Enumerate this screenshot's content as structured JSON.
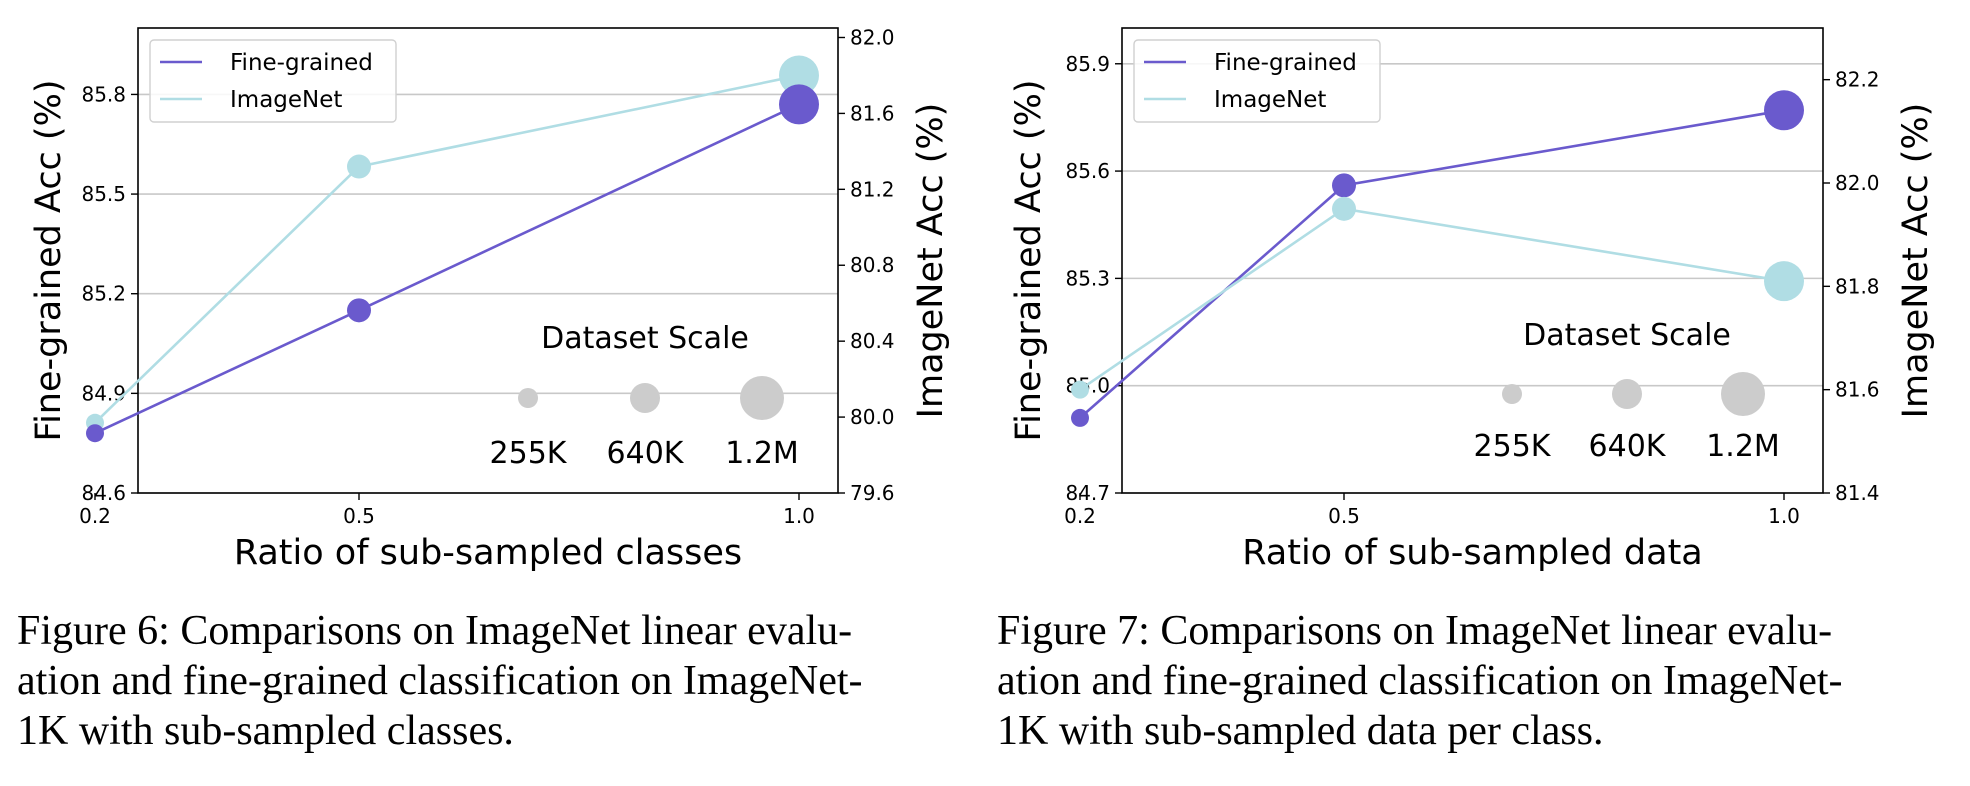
{
  "chart_data": [
    {
      "type": "line",
      "xlabel": "Ratio of sub-sampled classes",
      "ylabel_left": "Fine-grained Acc (%)",
      "ylabel_right": "ImageNet Acc (%)",
      "x": [
        0.2,
        0.5,
        1.0
      ],
      "x_ticks": [
        "0.2",
        "0.5",
        "1.0"
      ],
      "ylim_left": [
        84.6,
        86.0
      ],
      "ylim_right": [
        79.6,
        82.05
      ],
      "y_ticks_left": [
        "84.6",
        "84.9",
        "85.2",
        "85.5",
        "85.8"
      ],
      "y_ticks_right": [
        "79.6",
        "80.0",
        "80.4",
        "80.8",
        "81.2",
        "81.6",
        "82.0"
      ],
      "grid": "horizontal",
      "legend_position": "top-left",
      "series": [
        {
          "name": "Fine-grained",
          "axis": "left",
          "color": "#6a5acd",
          "values": [
            84.78,
            85.15,
            85.77
          ]
        },
        {
          "name": "ImageNet",
          "axis": "right",
          "color": "#b0dde4",
          "values": [
            79.97,
            81.32,
            81.8
          ]
        }
      ],
      "marker_sizes": [
        "small",
        "medium",
        "large"
      ],
      "scale_legend": {
        "title": "Dataset Scale",
        "labels": [
          "255K",
          "640K",
          "1.2M"
        ],
        "color": "#cccccc"
      },
      "caption": "Figure 6: Comparisons on ImageNet linear evalu-\nation and fine-grained classification on ImageNet-\n1K with sub-sampled classes."
    },
    {
      "type": "line",
      "xlabel": "Ratio of sub-sampled data",
      "ylabel_left": "Fine-grained Acc (%)",
      "ylabel_right": "ImageNet Acc (%)",
      "x": [
        0.2,
        0.5,
        1.0
      ],
      "x_ticks": [
        "0.2",
        "0.5",
        "1.0"
      ],
      "ylim_left": [
        84.7,
        86.0
      ],
      "ylim_right": [
        81.4,
        82.3
      ],
      "y_ticks_left": [
        "84.7",
        "85.0",
        "85.3",
        "85.6",
        "85.9"
      ],
      "y_ticks_right": [
        "81.4",
        "81.6",
        "81.8",
        "82.0",
        "82.2"
      ],
      "grid": "horizontal",
      "legend_position": "top-left",
      "series": [
        {
          "name": "Fine-grained",
          "axis": "left",
          "color": "#6a5acd",
          "values": [
            84.91,
            85.56,
            85.77
          ]
        },
        {
          "name": "ImageNet",
          "axis": "right",
          "color": "#b0dde4",
          "values": [
            81.6,
            81.95,
            81.81
          ]
        }
      ],
      "marker_sizes": [
        "small",
        "medium",
        "large"
      ],
      "scale_legend": {
        "title": "Dataset Scale",
        "labels": [
          "255K",
          "640K",
          "1.2M"
        ],
        "color": "#cccccc"
      },
      "caption": "Figure 7: Comparisons on ImageNet linear evalu-\nation and fine-grained classification on ImageNet-\n1K with sub-sampled data per class."
    }
  ]
}
